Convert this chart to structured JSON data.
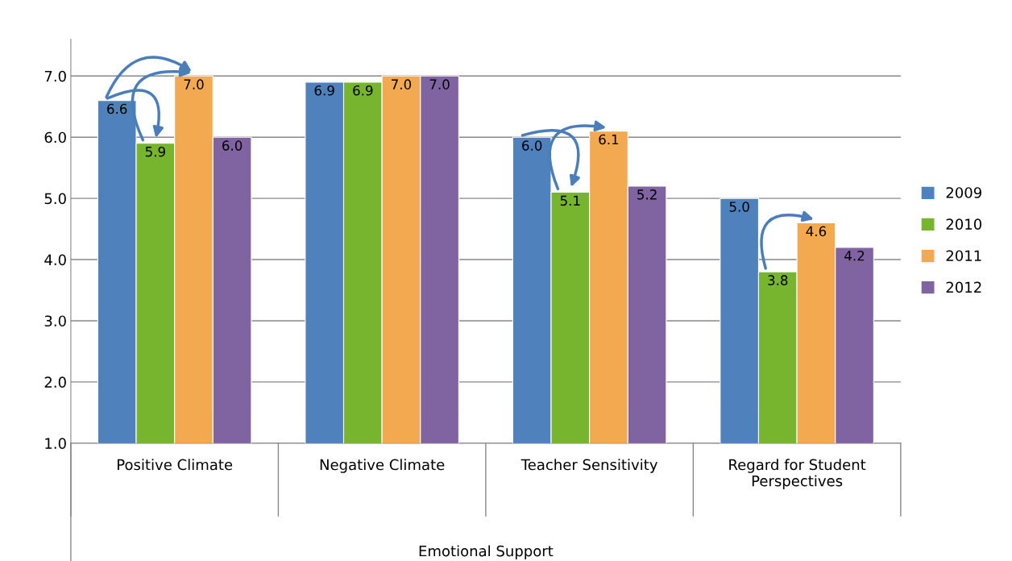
{
  "chart_data": {
    "type": "bar",
    "categories": [
      "Positive Climate",
      "Negative Climate",
      "Teacher Sensitivity",
      "Regard for Student\nPerspectives"
    ],
    "series": [
      {
        "name": "2009",
        "color": "#4f81bd",
        "values": [
          6.6,
          6.9,
          6.0,
          5.0
        ],
        "value_labels": [
          "6.6",
          "6.9",
          "6.0",
          "5.0"
        ]
      },
      {
        "name": "2010",
        "color": "#77b52f",
        "values": [
          5.9,
          6.9,
          5.1,
          3.8
        ],
        "value_labels": [
          "5.9",
          "6.9",
          "5.1",
          "3.8"
        ]
      },
      {
        "name": "2011",
        "color": "#f3a94f",
        "values": [
          7.0,
          7.0,
          6.1,
          4.6
        ],
        "value_labels": [
          "7.0",
          "7.0",
          "6.1",
          "4.6"
        ]
      },
      {
        "name": "2012",
        "color": "#8064a2",
        "values": [
          6.0,
          7.0,
          5.2,
          4.2
        ],
        "value_labels": [
          "6.0",
          "7.0",
          "5.2",
          "4.2"
        ]
      }
    ],
    "ylim": [
      1.0,
      7.6
    ],
    "yticks": [
      {
        "value": 1.0,
        "label": "1.0"
      },
      {
        "value": 2.0,
        "label": "2.0"
      },
      {
        "value": 3.0,
        "label": "3.0"
      },
      {
        "value": 4.0,
        "label": "4.0"
      },
      {
        "value": 5.0,
        "label": "5.0"
      },
      {
        "value": 6.0,
        "label": "6.0"
      },
      {
        "value": 7.0,
        "label": "7.0"
      }
    ],
    "grid": "y",
    "legend": "right",
    "annotations": [
      "Emotional Support"
    ]
  }
}
